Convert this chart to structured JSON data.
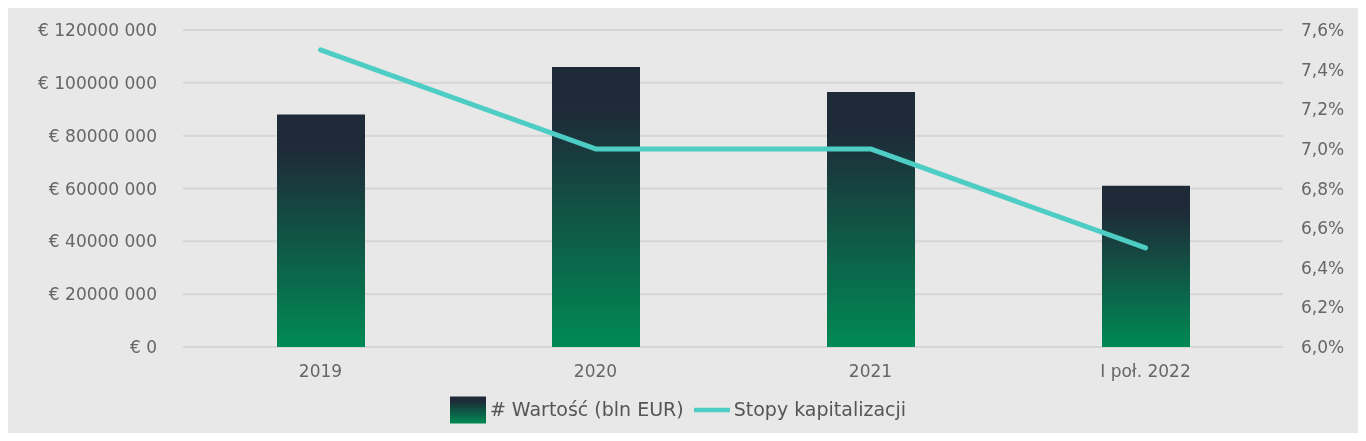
{
  "chart_data": {
    "type": "bar",
    "categories": [
      "2019",
      "2020",
      "2021",
      "I poł. 2022"
    ],
    "series": [
      {
        "name": "# Wartość (bln EUR)",
        "color": "#1e2a38",
        "values": [
          88000000,
          106000000,
          96500000,
          61000000
        ]
      },
      {
        "name": "Stopy kapitalizacji",
        "type": "line",
        "axis": "y2",
        "color": "#4ecdc4",
        "values": [
          7.5,
          7.0,
          7.0,
          6.5
        ]
      }
    ],
    "ylim": [
      0,
      120000000
    ],
    "yticks": [
      {
        "value": 0,
        "label": "€  0"
      },
      {
        "value": 20000000,
        "label": "€ 20000 000"
      },
      {
        "value": 40000000,
        "label": "€ 40000 000"
      },
      {
        "value": 60000000,
        "label": "€ 60000 000"
      },
      {
        "value": 80000000,
        "label": "€ 80000 000"
      },
      {
        "value": 100000000,
        "label": "€ 100000 000"
      },
      {
        "value": 120000000,
        "label": "€ 120000 000"
      }
    ],
    "y2lim": [
      6.0,
      7.6
    ],
    "y2ticks": [
      {
        "value": 6.0,
        "label": "6,0%"
      },
      {
        "value": 6.2,
        "label": "6,2%"
      },
      {
        "value": 6.4,
        "label": "6,4%"
      },
      {
        "value": 6.6,
        "label": "6,6%"
      },
      {
        "value": 6.8,
        "label": "6,8%"
      },
      {
        "value": 7.0,
        "label": "7,0%"
      },
      {
        "value": 7.2,
        "label": "7,2%"
      },
      {
        "value": 7.4,
        "label": "7,4%"
      },
      {
        "value": 7.6,
        "label": "7,6%"
      }
    ],
    "grid": "y",
    "legend": "bottom",
    "marker": "none",
    "line_style": "solid"
  }
}
